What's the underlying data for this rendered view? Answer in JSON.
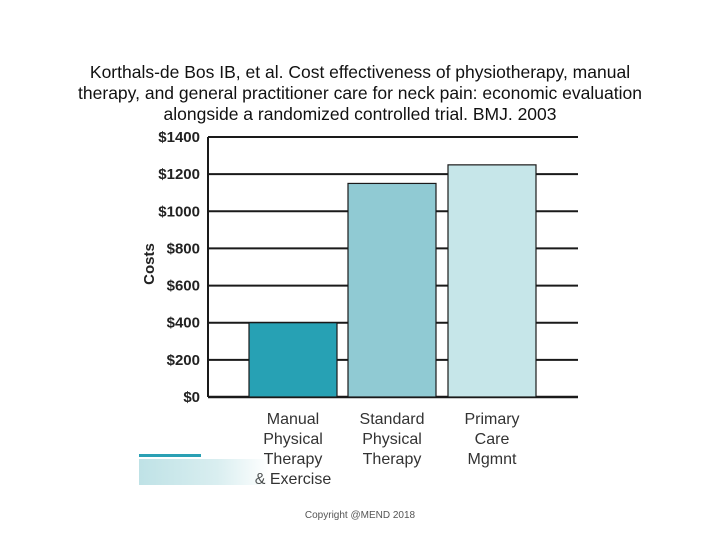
{
  "title_lines": [
    "Korthals-de Bos IB, et al. Cost effectiveness of  physiotherapy, manual",
    "therapy, and general practitioner care for neck pain: economic evaluation",
    "alongside a randomized controlled trial. BMJ. 2003"
  ],
  "copyright": "Copyright @MEND 2018",
  "chart_data": {
    "type": "bar",
    "title": "Korthals-de Bos IB, et al. Cost effectiveness of  physiotherapy, manual therapy, and general practitioner care for neck pain: economic evaluation alongside a randomized controlled trial. BMJ. 2003",
    "ylabel": "Costs",
    "xlabel": "",
    "ylim": [
      0,
      1400
    ],
    "yticks": [
      0,
      200,
      400,
      600,
      800,
      1000,
      1200,
      1400
    ],
    "ytick_labels": [
      "$0",
      "$200",
      "$400",
      "$600",
      "$800",
      "$1000",
      "$1200",
      "$1400"
    ],
    "grid": true,
    "categories": [
      [
        "Manual",
        "Physical",
        "Therapy",
        "& Exercise"
      ],
      [
        "Standard",
        "Physical",
        "Therapy"
      ],
      [
        "Primary",
        "Care",
        "Mgmnt"
      ]
    ],
    "values": [
      400,
      1150,
      1250
    ],
    "colors": [
      "#27a1b4",
      "#90cad3",
      "#c6e6e9"
    ]
  }
}
